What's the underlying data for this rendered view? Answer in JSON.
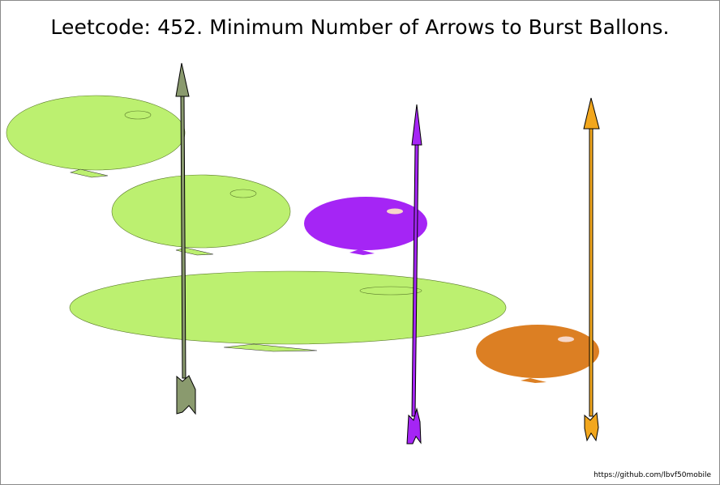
{
  "title": "Leetcode: 452. Minimum Number of Arrows to Burst Ballons.",
  "credit": "https://github.com/lbvf50mobile",
  "colors": {
    "balloon_green": "#bcf070",
    "arrow_green": "#8a9a6e",
    "balloon_purple": "#a525f5",
    "balloon_orange": "#dc7f23",
    "arrow_orange": "#f2a71e",
    "highlight": "#f6d7c9"
  },
  "balloons": [
    {
      "name": "balloon-green-1",
      "color": "balloon_green"
    },
    {
      "name": "balloon-green-2",
      "color": "balloon_green"
    },
    {
      "name": "balloon-green-3",
      "color": "balloon_green"
    },
    {
      "name": "balloon-purple",
      "color": "balloon_purple"
    },
    {
      "name": "balloon-orange",
      "color": "balloon_orange"
    }
  ],
  "arrows": [
    {
      "name": "arrow-green",
      "color": "arrow_green"
    },
    {
      "name": "arrow-purple",
      "color": "balloon_purple"
    },
    {
      "name": "arrow-orange",
      "color": "arrow_orange"
    }
  ]
}
